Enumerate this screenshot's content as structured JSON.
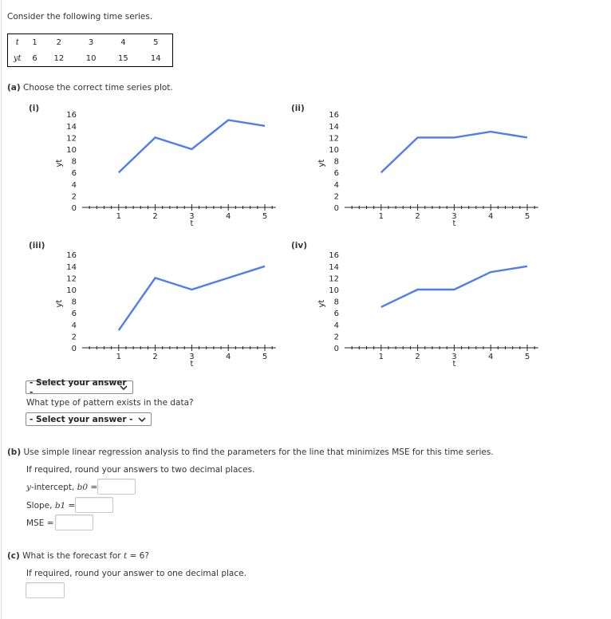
{
  "intro": "Consider the following time series.",
  "table": {
    "t_label": "t",
    "y_label": "yt",
    "t": [
      "1",
      "2",
      "3",
      "4",
      "5"
    ],
    "y": [
      "6",
      "12",
      "10",
      "15",
      "14"
    ]
  },
  "part_a": {
    "label": "(a)",
    "text": "Choose the correct time series plot.",
    "select1": "- Select your answer -",
    "pattern_question": "What type of pattern exists in the data?",
    "select2": "- Select your answer -"
  },
  "part_b": {
    "label": "(b)",
    "text": "Use simple linear regression analysis to find the parameters for the line that minimizes MSE for this time series.",
    "round_note": "If required, round your answers to two decimal places.",
    "intercept_label_pre": "y",
    "intercept_label_mid": "-intercept, ",
    "intercept_label_var": "b0",
    "intercept_value": "",
    "slope_label_pre": "Slope, ",
    "slope_label_var": "b1",
    "slope_value": "",
    "eq": " =",
    "mse_label": "MSE =",
    "mse_value": ""
  },
  "part_c": {
    "label": "(c)",
    "text_pre": "What is the forecast for ",
    "text_var": "t",
    "text_post": " = 6?",
    "round_note": "If required, round your answer to one decimal place.",
    "forecast_value": ""
  },
  "colors": {
    "line": "#4f7cf0",
    "axis": "#222222"
  },
  "chart_data": [
    {
      "type": "line",
      "label": "(i)",
      "title": "",
      "xlabel": "t",
      "ylabel": "yt",
      "x": [
        1,
        2,
        3,
        4,
        5
      ],
      "values": [
        6,
        12,
        10,
        15,
        14
      ],
      "xticks": [
        "1",
        "2",
        "3",
        "4",
        "5"
      ],
      "yticks": [
        "0",
        "2",
        "4",
        "6",
        "8",
        "10",
        "12",
        "14",
        "16"
      ],
      "ylim": [
        0,
        16
      ],
      "xlim": [
        0,
        5.3
      ],
      "grid": false,
      "legend": null
    },
    {
      "type": "line",
      "label": "(ii)",
      "title": "",
      "xlabel": "t",
      "ylabel": "yt",
      "x": [
        1,
        2,
        3,
        4,
        5
      ],
      "values": [
        6,
        12,
        12,
        13,
        12
      ],
      "xticks": [
        "1",
        "2",
        "3",
        "4",
        "5"
      ],
      "yticks": [
        "0",
        "2",
        "4",
        "6",
        "8",
        "10",
        "12",
        "14",
        "16"
      ],
      "ylim": [
        0,
        16
      ],
      "xlim": [
        0,
        5.3
      ],
      "grid": false,
      "legend": null
    },
    {
      "type": "line",
      "label": "(iii)",
      "title": "",
      "xlabel": "t",
      "ylabel": "yt",
      "x": [
        1,
        2,
        3,
        4,
        5
      ],
      "values": [
        3,
        12,
        10,
        12,
        14
      ],
      "xticks": [
        "1",
        "2",
        "3",
        "4",
        "5"
      ],
      "yticks": [
        "0",
        "2",
        "4",
        "6",
        "8",
        "10",
        "12",
        "14",
        "16"
      ],
      "ylim": [
        0,
        16
      ],
      "xlim": [
        0,
        5.3
      ],
      "grid": false,
      "legend": null
    },
    {
      "type": "line",
      "label": "(iv)",
      "title": "",
      "xlabel": "t",
      "ylabel": "yt",
      "x": [
        1,
        2,
        3,
        4,
        5
      ],
      "values": [
        7,
        10,
        10,
        13,
        14
      ],
      "xticks": [
        "1",
        "2",
        "3",
        "4",
        "5"
      ],
      "yticks": [
        "0",
        "2",
        "4",
        "6",
        "8",
        "10",
        "12",
        "14",
        "16"
      ],
      "ylim": [
        0,
        16
      ],
      "xlim": [
        0,
        5.3
      ],
      "grid": false,
      "legend": null
    }
  ]
}
